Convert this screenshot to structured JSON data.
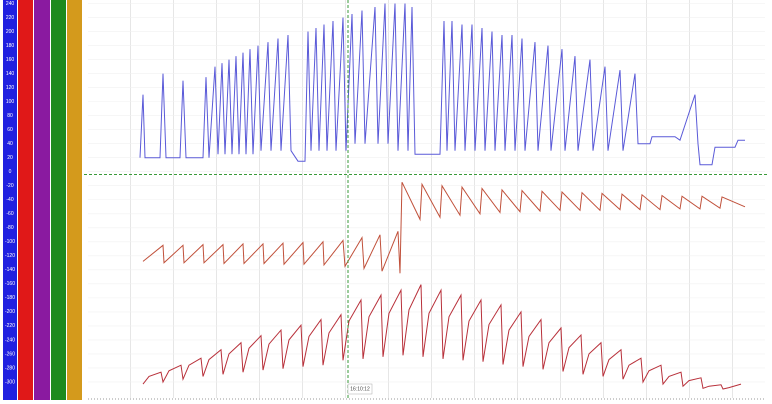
{
  "chart_data": {
    "type": "line",
    "xlim": [
      88,
      765
    ],
    "ylim": [
      -320,
      245
    ],
    "yticks": [
      240,
      220,
      200,
      180,
      160,
      140,
      120,
      100,
      80,
      60,
      40,
      20,
      0,
      -20,
      -40,
      -60,
      -80,
      -100,
      -120,
      -140,
      -160,
      -180,
      -200,
      -220,
      -240,
      -260,
      -280,
      -300
    ],
    "grid": true,
    "cursor_x": 348,
    "cursor_y": -4,
    "cursor_color": "#3a9a3a",
    "cursor_label": "16:10:12",
    "series": [
      {
        "color": "#5a5ad8",
        "x": [
          140,
          143,
          145,
          160,
          163,
          166,
          180,
          183,
          186,
          203,
          206,
          209,
          215,
          218,
          222,
          225,
          229,
          232,
          236,
          239,
          243,
          246,
          250,
          253,
          258,
          261,
          268,
          271,
          278,
          281,
          288,
          291,
          298,
          305,
          308,
          311,
          316,
          319,
          324,
          327,
          333,
          336,
          343,
          346,
          352,
          355,
          362,
          365,
          375,
          378,
          385,
          388,
          395,
          398,
          405,
          408,
          412,
          415,
          425,
          440,
          444,
          447,
          452,
          455,
          462,
          465,
          472,
          475,
          482,
          485,
          492,
          495,
          502,
          505,
          512,
          515,
          522,
          525,
          535,
          538,
          548,
          551,
          562,
          565,
          575,
          578,
          590,
          593,
          605,
          608,
          620,
          623,
          635,
          638,
          650,
          652,
          675,
          680,
          695,
          698,
          700,
          712,
          715,
          735,
          738,
          745
        ],
        "values": [
          20,
          110,
          20,
          20,
          140,
          20,
          20,
          130,
          20,
          20,
          135,
          20,
          150,
          25,
          155,
          25,
          160,
          25,
          165,
          25,
          170,
          25,
          175,
          25,
          180,
          30,
          185,
          30,
          190,
          30,
          195,
          30,
          15,
          15,
          200,
          30,
          205,
          30,
          210,
          30,
          215,
          30,
          220,
          30,
          225,
          40,
          230,
          40,
          235,
          40,
          240,
          40,
          240,
          30,
          240,
          30,
          235,
          25,
          25,
          25,
          215,
          30,
          215,
          30,
          210,
          30,
          210,
          30,
          205,
          30,
          200,
          30,
          195,
          30,
          195,
          30,
          190,
          30,
          185,
          30,
          180,
          30,
          175,
          30,
          165,
          30,
          160,
          30,
          150,
          30,
          145,
          30,
          140,
          40,
          40,
          50,
          50,
          45,
          110,
          40,
          10,
          10,
          35,
          35,
          45,
          45
        ]
      },
      {
        "color": "#c0503a",
        "x": [
          143,
          163,
          164,
          183,
          184,
          203,
          204,
          223,
          224,
          243,
          244,
          263,
          264,
          283,
          284,
          303,
          304,
          323,
          324,
          343,
          345,
          362,
          364,
          380,
          382,
          398,
          400,
          402,
          420,
          422,
          440,
          442,
          460,
          462,
          480,
          482,
          500,
          502,
          520,
          522,
          540,
          542,
          560,
          562,
          580,
          582,
          600,
          602,
          620,
          622,
          640,
          642,
          660,
          662,
          680,
          682,
          700,
          702,
          720,
          722,
          745
        ],
        "values": [
          -128,
          -105,
          -130,
          -105,
          -130,
          -104,
          -130,
          -104,
          -131,
          -103,
          -131,
          -103,
          -131,
          -102,
          -132,
          -101,
          -132,
          -100,
          -133,
          -98,
          -135,
          -94,
          -138,
          -90,
          -142,
          -85,
          -145,
          -15,
          -68,
          -18,
          -65,
          -20,
          -62,
          -22,
          -60,
          -24,
          -58,
          -26,
          -57,
          -27,
          -56,
          -28,
          -55,
          -29,
          -55,
          -30,
          -55,
          -31,
          -54,
          -32,
          -54,
          -33,
          -54,
          -34,
          -53,
          -35,
          -53,
          -35,
          -52,
          -36,
          -50
        ]
      },
      {
        "color": "#b8303a",
        "x": [
          143,
          149,
          161,
          163,
          169,
          181,
          183,
          189,
          201,
          203,
          209,
          221,
          223,
          229,
          241,
          243,
          249,
          261,
          263,
          269,
          281,
          283,
          289,
          301,
          303,
          309,
          321,
          323,
          329,
          341,
          343,
          349,
          361,
          363,
          369,
          381,
          383,
          389,
          401,
          403,
          409,
          421,
          423,
          429,
          441,
          443,
          449,
          461,
          463,
          469,
          481,
          483,
          489,
          501,
          503,
          509,
          521,
          523,
          529,
          541,
          543,
          549,
          561,
          563,
          569,
          581,
          583,
          589,
          601,
          603,
          609,
          621,
          623,
          629,
          641,
          643,
          649,
          661,
          663,
          669,
          681,
          683,
          689,
          701,
          703,
          709,
          721,
          723,
          729,
          741
        ],
        "values": [
          -303,
          -292,
          -286,
          -300,
          -284,
          -276,
          -296,
          -276,
          -266,
          -292,
          -268,
          -254,
          -289,
          -260,
          -244,
          -286,
          -252,
          -234,
          -283,
          -246,
          -226,
          -281,
          -240,
          -219,
          -278,
          -235,
          -211,
          -276,
          -230,
          -204,
          -269,
          -213,
          -183,
          -267,
          -207,
          -176,
          -264,
          -202,
          -169,
          -262,
          -197,
          -161,
          -264,
          -202,
          -169,
          -267,
          -207,
          -176,
          -269,
          -213,
          -183,
          -271,
          -218,
          -190,
          -275,
          -226,
          -200,
          -278,
          -235,
          -211,
          -282,
          -244,
          -223,
          -285,
          -251,
          -233,
          -289,
          -260,
          -244,
          -292,
          -268,
          -254,
          -296,
          -276,
          -266,
          -300,
          -284,
          -276,
          -303,
          -292,
          -286,
          -306,
          -298,
          -294,
          -309,
          -306,
          -304,
          -310,
          -308,
          -303
        ]
      }
    ]
  }
}
